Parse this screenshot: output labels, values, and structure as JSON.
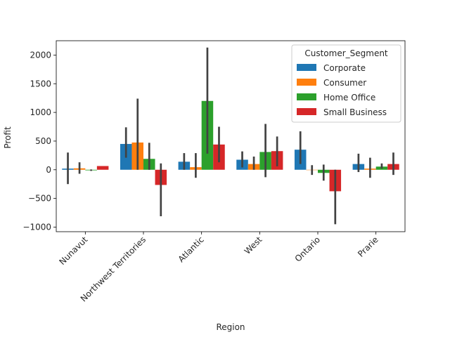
{
  "chart_data": {
    "type": "bar",
    "xlabel": "Region",
    "ylabel": "Profit",
    "ylim": [
      -1080,
      2250
    ],
    "yticks": [
      -1000,
      -500,
      0,
      500,
      1000,
      1500,
      2000
    ],
    "ytick_labels": [
      "−1000",
      "−500",
      "0",
      "500",
      "1000",
      "1500",
      "2000"
    ],
    "categories": [
      "Nunavut",
      "Northwest Territories",
      "Atlantic",
      "West",
      "Ontario",
      "Prarie"
    ],
    "legend_title": "Customer_Segment",
    "legend_position": "upper right",
    "series": [
      {
        "name": "Corporate",
        "color": "#1f77b4",
        "values": [
          20,
          450,
          140,
          175,
          350,
          100
        ],
        "ci_low": [
          -250,
          210,
          0,
          40,
          100,
          -40
        ],
        "ci_high": [
          300,
          740,
          290,
          320,
          670,
          280
        ]
      },
      {
        "name": "Consumer",
        "color": "#ff7f0e",
        "values": [
          25,
          475,
          45,
          100,
          -5,
          20
        ],
        "ci_low": [
          -70,
          0,
          -140,
          0,
          -90,
          -140
        ],
        "ci_high": [
          130,
          1240,
          290,
          230,
          80,
          210
        ]
      },
      {
        "name": "Home Office",
        "color": "#2ca02c",
        "values": [
          -10,
          190,
          1200,
          310,
          -55,
          55
        ],
        "ci_low": [
          -20,
          0,
          280,
          -130,
          -190,
          20
        ],
        "ci_high": [
          5,
          470,
          2130,
          800,
          90,
          110
        ]
      },
      {
        "name": "Small Business",
        "color": "#d62728",
        "values": [
          65,
          -265,
          440,
          325,
          -375,
          100
        ],
        "ci_low": [
          65,
          -810,
          130,
          60,
          -950,
          -90
        ],
        "ci_high": [
          65,
          110,
          750,
          580,
          0,
          300
        ]
      }
    ]
  }
}
